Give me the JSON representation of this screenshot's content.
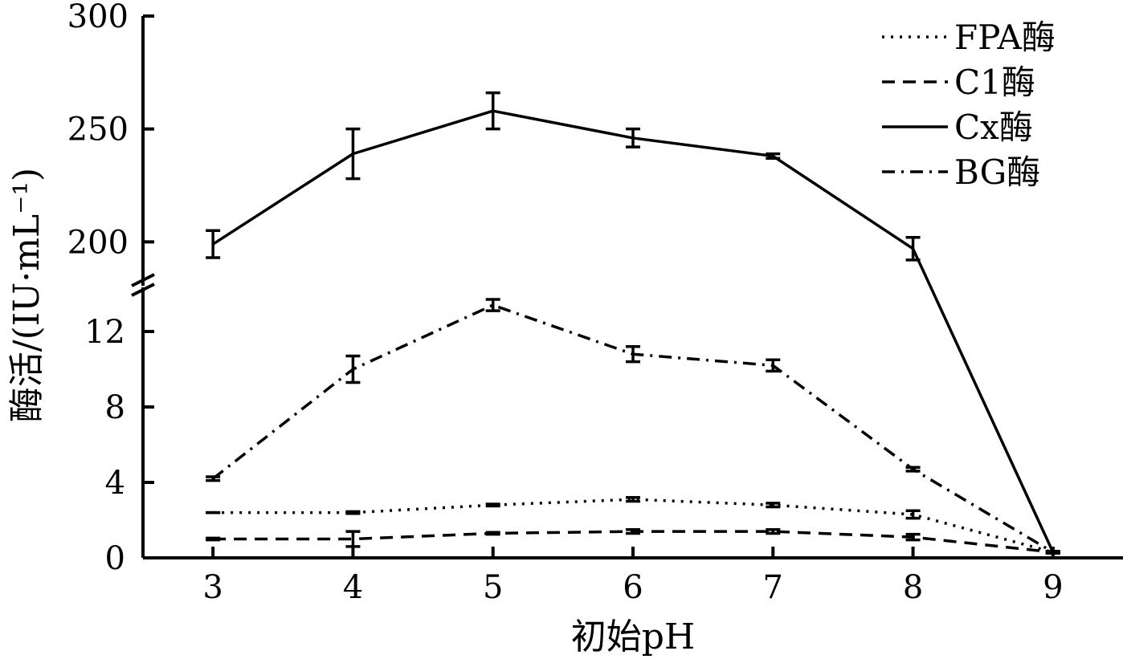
{
  "chart_data": {
    "type": "line",
    "xlabel": "初始pH",
    "ylabel": "酶活/(IU·mL⁻¹)",
    "x": [
      3,
      4,
      5,
      6,
      7,
      8,
      9
    ],
    "xlim": [
      2.5,
      9.5
    ],
    "x_ticks": [
      "3",
      "4",
      "5",
      "6",
      "7",
      "8",
      "9"
    ],
    "axis_break": true,
    "y_lower": {
      "range": [
        0,
        14
      ],
      "ticks": [
        "0",
        "4",
        "8",
        "12"
      ]
    },
    "y_upper": {
      "range": [
        182,
        300
      ],
      "ticks": [
        "200",
        "250",
        "300"
      ]
    },
    "legend_position": "top-right",
    "series": [
      {
        "name": "FPA酶",
        "style": "dotted",
        "values": [
          2.4,
          2.4,
          2.8,
          3.1,
          2.8,
          2.3,
          0.3
        ],
        "errors": [
          0,
          0.05,
          0.05,
          0.1,
          0.1,
          0.2,
          0.05
        ]
      },
      {
        "name": "C1酶",
        "style": "dashed",
        "values": [
          1.0,
          1.0,
          1.3,
          1.4,
          1.4,
          1.1,
          0.3
        ],
        "errors": [
          0.05,
          0.4,
          0.05,
          0.1,
          0.1,
          0.15,
          0.05
        ]
      },
      {
        "name": "Cx酶",
        "style": "solid",
        "values": [
          199,
          239,
          258,
          246,
          238,
          197,
          0.3
        ],
        "errors": [
          6,
          11,
          8,
          4,
          1,
          5,
          0.05
        ]
      },
      {
        "name": "BG酶",
        "style": "dashdot",
        "values": [
          4.2,
          10.0,
          13.4,
          10.8,
          10.2,
          4.7,
          0.3
        ],
        "errors": [
          0.1,
          0.7,
          0.3,
          0.4,
          0.3,
          0.1,
          0.05
        ]
      }
    ]
  }
}
